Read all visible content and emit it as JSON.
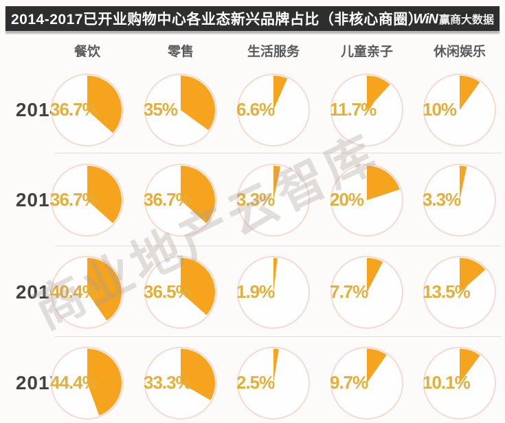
{
  "title": {
    "text": "2014-2017已开业购物中心各业态新兴品牌占比（非核心商圈）",
    "logo_mark": "WiN",
    "logo_name": "赢商大数据"
  },
  "watermark": "商业地产云智库",
  "colors": {
    "titlebar_bg": "#2e2e2e",
    "wedge": "#f6a41d",
    "percent_label": "#e4ae3b",
    "circle_stroke": "#f3dad3",
    "circle_fill": "#fffefe"
  },
  "chart_data": {
    "type": "pie",
    "title": "2014-2017已开业购物中心各业态新兴品牌占比（非核心商圈）",
    "unit": "%",
    "layout_hint": "grid of small pies: rows = years, columns = business categories; orange wedge starts at 12 o'clock and sweeps clockwise by the percentage",
    "columns": [
      "餐饮",
      "零售",
      "生活服务",
      "儿童亲子",
      "休闲娱乐"
    ],
    "rows": [
      {
        "year": "2014",
        "values": [
          36.7,
          35,
          6.6,
          11.7,
          10
        ],
        "labels": [
          "36.7%",
          "35%",
          "6.6%",
          "11.7%",
          "10%"
        ]
      },
      {
        "year": "2015",
        "values": [
          36.7,
          36.7,
          3.3,
          20,
          3.3
        ],
        "labels": [
          "36.7%",
          "36.7%",
          "3.3%",
          "20%",
          "3.3%"
        ]
      },
      {
        "year": "2016",
        "values": [
          40.4,
          36.5,
          1.9,
          7.7,
          13.5
        ],
        "labels": [
          "40.4%",
          "36.5%",
          "1.9%",
          "7.7%",
          "13.5%"
        ]
      },
      {
        "year": "2017",
        "values": [
          44.4,
          33.3,
          2.5,
          9.7,
          10.1
        ],
        "labels": [
          "44.4%",
          "33.3%",
          "2.5%",
          "9.7%",
          "10.1%"
        ]
      }
    ]
  }
}
